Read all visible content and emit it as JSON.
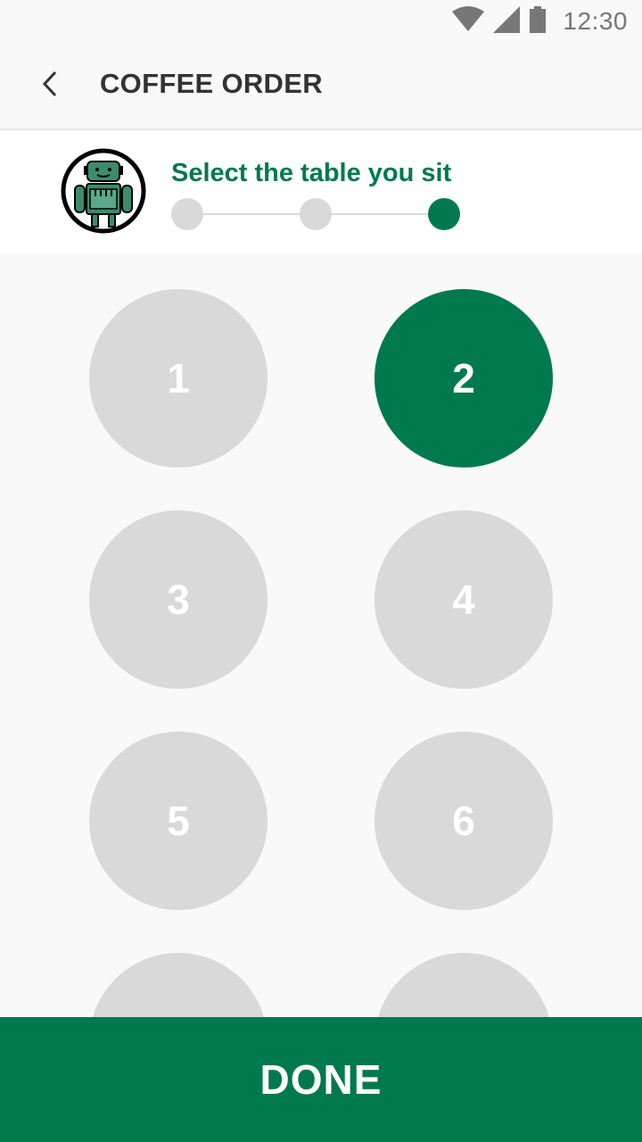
{
  "status_bar": {
    "time": "12:30",
    "icons": [
      "wifi-icon",
      "cell-signal-icon",
      "battery-icon"
    ]
  },
  "app_bar": {
    "title": "COFFEE ORDER",
    "back_icon": "back-chevron-icon"
  },
  "step": {
    "title": "Select the table you sit",
    "total_steps": 3,
    "current_step": 3
  },
  "tables": [
    {
      "label": "1",
      "selected": false
    },
    {
      "label": "2",
      "selected": true
    },
    {
      "label": "3",
      "selected": false
    },
    {
      "label": "4",
      "selected": false
    },
    {
      "label": "5",
      "selected": false
    },
    {
      "label": "6",
      "selected": false
    },
    {
      "label": "",
      "selected": false
    },
    {
      "label": "",
      "selected": false
    }
  ],
  "done_label": "DONE",
  "colors": {
    "accent": "#00794f",
    "inactive": "#d9d9d9",
    "background": "#f9f9f9"
  }
}
